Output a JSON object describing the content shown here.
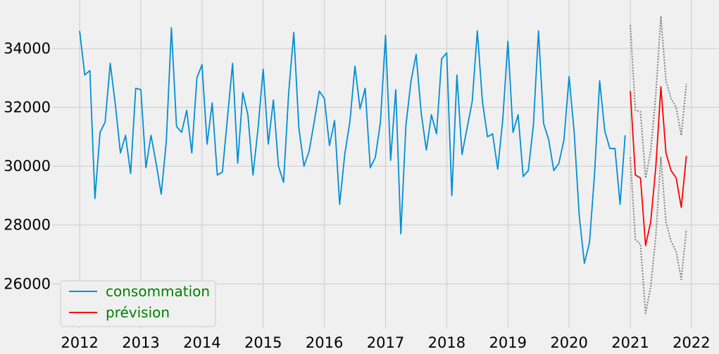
{
  "chart_data": {
    "type": "line",
    "title": "",
    "xlabel": "",
    "ylabel": "",
    "xlim": [
      2011.55,
      2022.45
    ],
    "ylim": [
      24500,
      35650
    ],
    "x_ticks": [
      2012,
      2013,
      2014,
      2015,
      2016,
      2017,
      2018,
      2019,
      2020,
      2021,
      2022
    ],
    "y_ticks": [
      26000,
      28000,
      30000,
      32000,
      34000
    ],
    "grid": true,
    "legend_position": "lower-left",
    "series": [
      {
        "name": "consommation",
        "color": "#008fd5",
        "style": "solid",
        "start": 2012.0,
        "step": 0.08333,
        "values": [
          34600,
          33100,
          33250,
          28900,
          31150,
          31500,
          33500,
          32100,
          30450,
          31050,
          29750,
          32650,
          32600,
          29950,
          31050,
          30100,
          29050,
          30850,
          34700,
          31350,
          31150,
          31900,
          30450,
          33000,
          33450,
          30750,
          32150,
          29700,
          29800,
          31650,
          33500,
          30100,
          32500,
          31750,
          29700,
          31300,
          33300,
          30750,
          32250,
          30000,
          29450,
          32500,
          34550,
          31300,
          30000,
          30500,
          31500,
          32550,
          32300,
          30700,
          31550,
          28700,
          30400,
          31500,
          33400,
          31950,
          32650,
          29950,
          30300,
          31500,
          34450,
          30200,
          32600,
          27700,
          31400,
          32900,
          33800,
          31800,
          30550,
          31750,
          31100,
          33650,
          33850,
          29000,
          33100,
          30400,
          31300,
          32200,
          34600,
          32200,
          31000,
          31100,
          29900,
          31600,
          34250,
          31150,
          31750,
          29650,
          29850,
          31400,
          34600,
          31450,
          30900,
          29850,
          30100,
          30900,
          33050,
          31150,
          28300,
          26700,
          27400,
          29750,
          32900,
          31200,
          30600,
          30600,
          28700,
          31050
        ]
      },
      {
        "name": "prévision",
        "color": "#ff0000",
        "style": "solid",
        "start": 2021.0,
        "step": 0.08333,
        "values": [
          32550,
          29700,
          29600,
          27300,
          28100,
          29950,
          32700,
          30450,
          29850,
          29600,
          28600,
          30350
        ]
      },
      {
        "name": "",
        "color": "#808080",
        "style": "dotted",
        "start": 2021.0,
        "step": 0.08333,
        "values": [
          34800,
          31900,
          31850,
          29600,
          30500,
          32400,
          35100,
          32900,
          32300,
          32000,
          31050,
          32800
        ]
      },
      {
        "name": "",
        "color": "#808080",
        "style": "dotted",
        "start": 2021.0,
        "step": 0.08333,
        "values": [
          30300,
          27500,
          27350,
          25000,
          25900,
          27600,
          30300,
          28100,
          27450,
          27100,
          26150,
          27850
        ]
      }
    ]
  }
}
